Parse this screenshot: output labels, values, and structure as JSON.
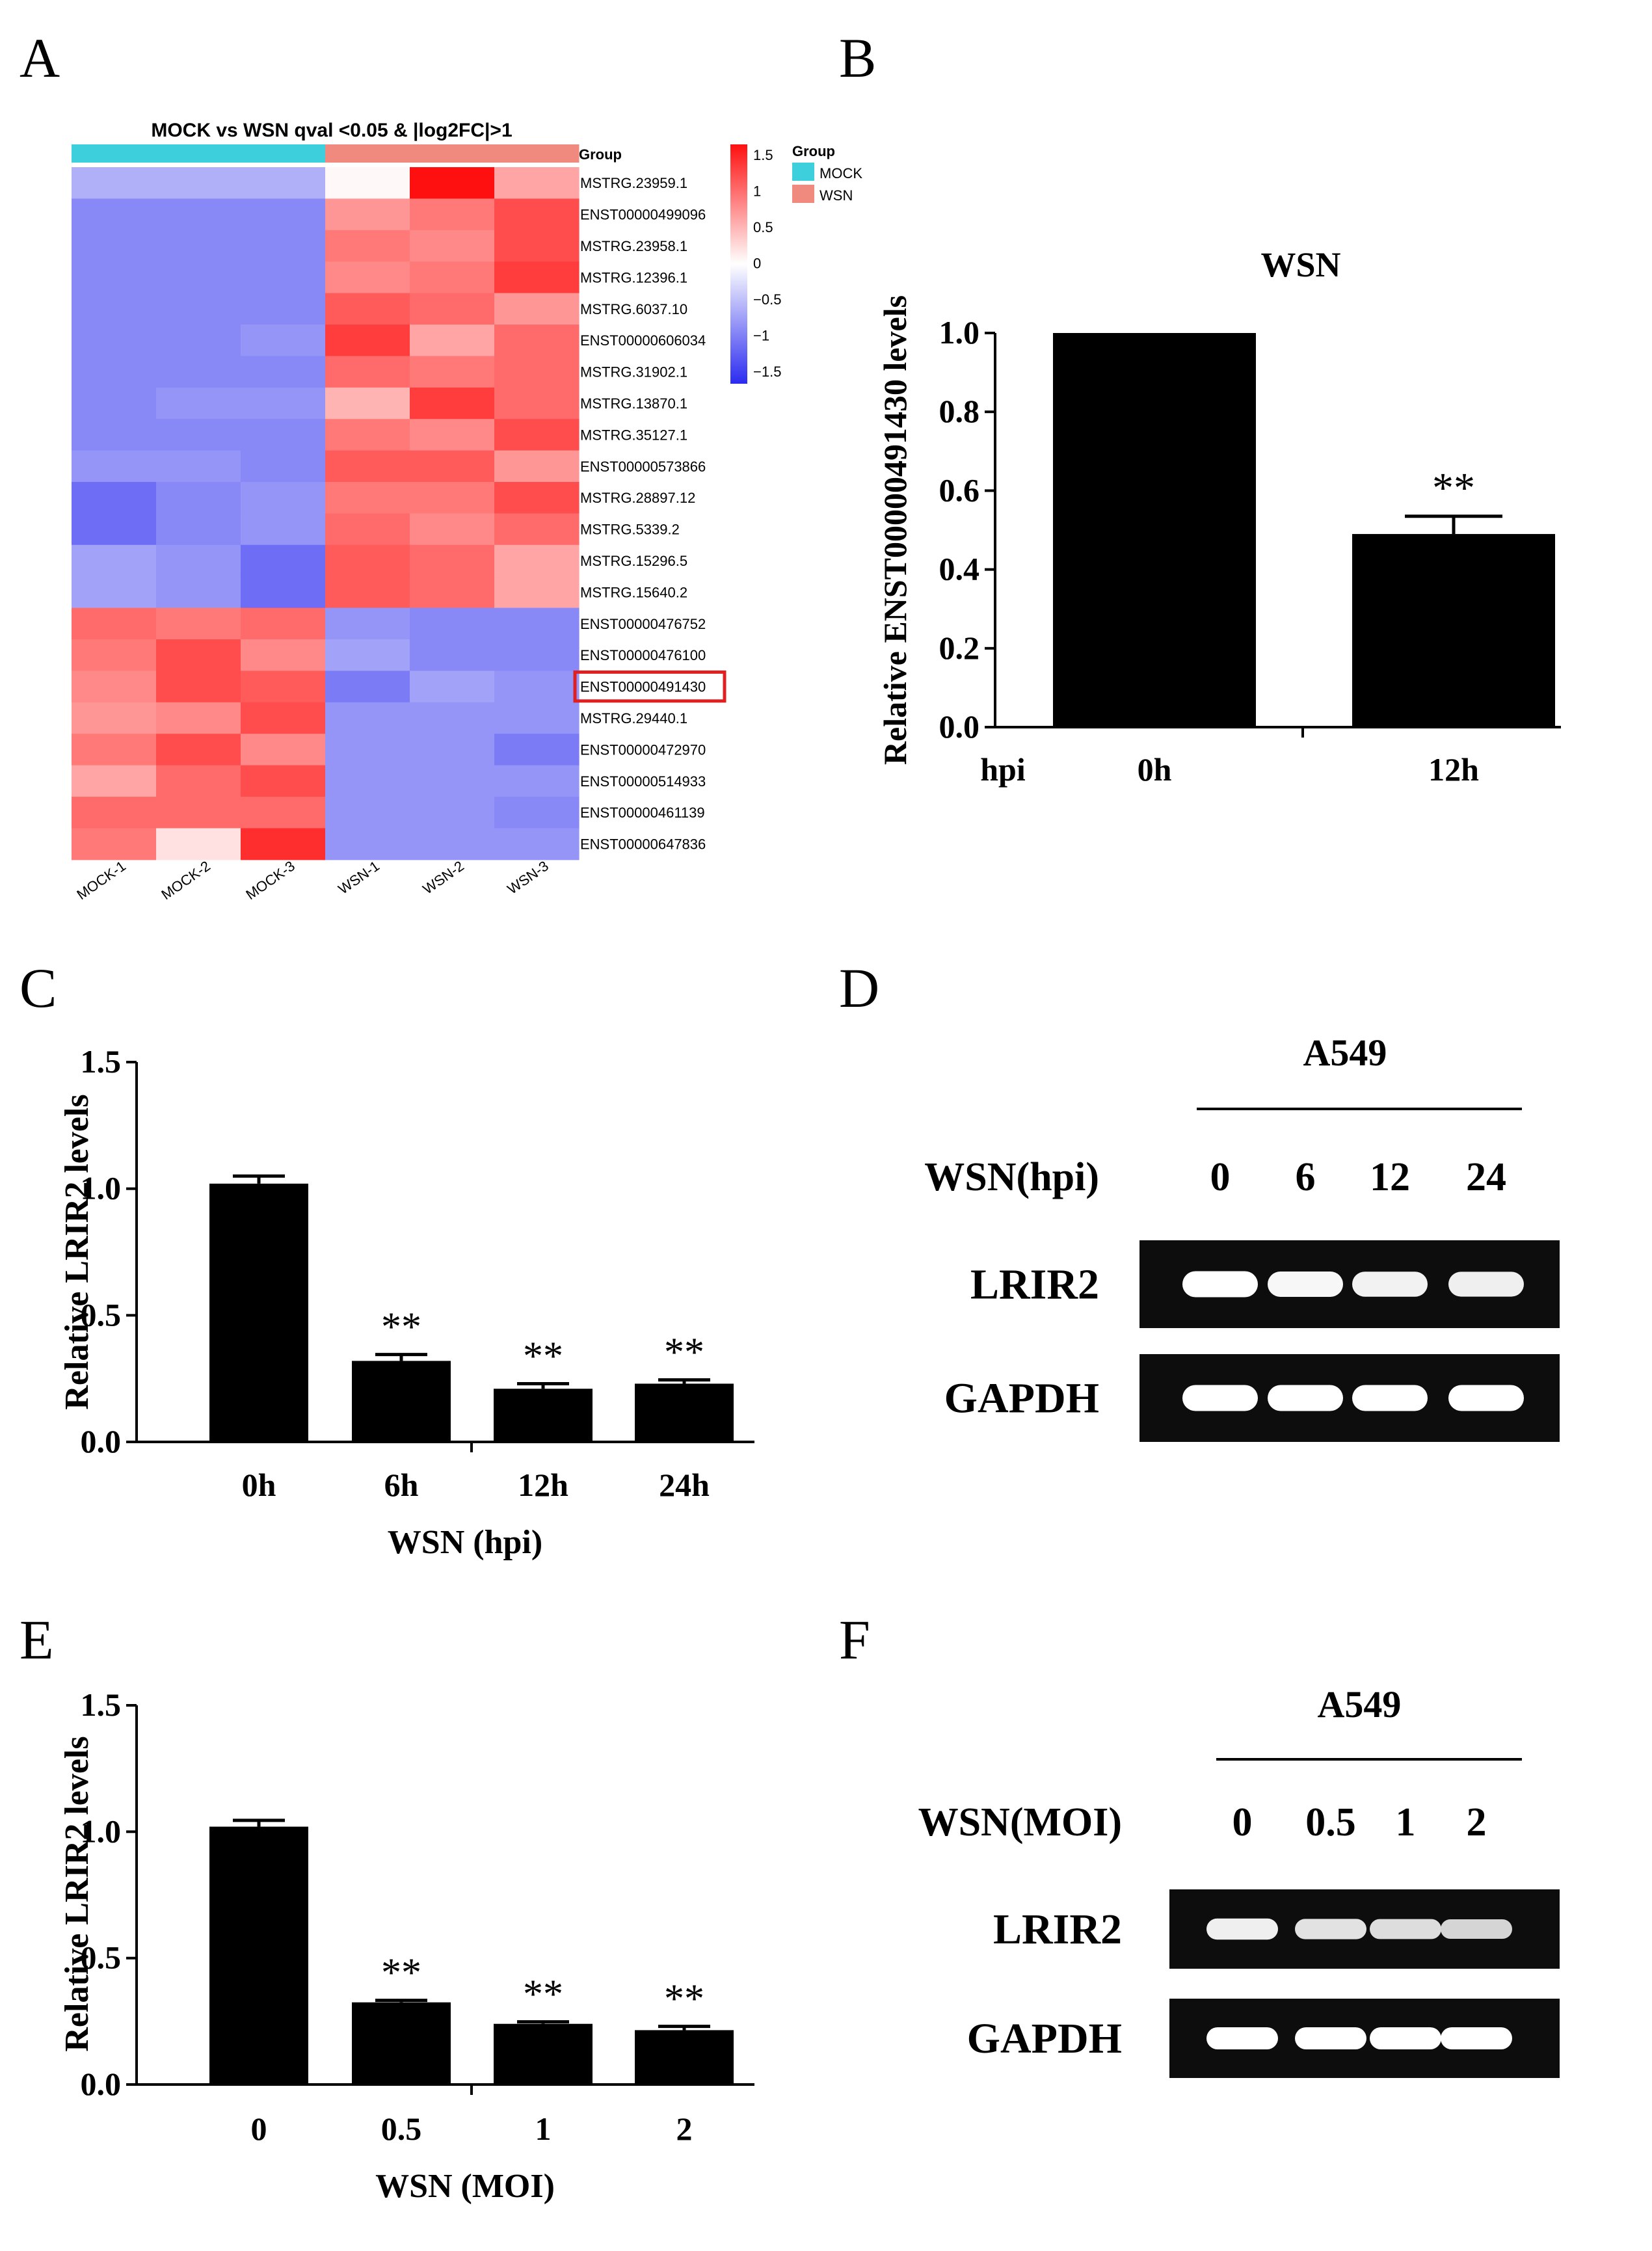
{
  "panels": {
    "A": {
      "label": "A"
    },
    "B": {
      "label": "B"
    },
    "C": {
      "label": "C"
    },
    "D": {
      "label": "D"
    },
    "E": {
      "label": "E"
    },
    "F": {
      "label": "F"
    }
  },
  "colors": {
    "mock": "#3ecfdc",
    "wsn": "#f08a7e",
    "bar": "#000000",
    "heat_low": "#2b2bf0",
    "heat_mid": "#ffffff",
    "heat_high": "#ff1010",
    "gel_bg": "#0d0d0d",
    "highlight_box": "#e02020"
  },
  "chart_data": [
    {
      "type": "heatmap",
      "panel": "A",
      "title": "MOCK vs WSN qval <0.05 & |log2FC|>1",
      "group_row_label": "Group",
      "columns": [
        "MOCK-1",
        "MOCK-2",
        "MOCK-3",
        "WSN-1",
        "WSN-2",
        "WSN-3"
      ],
      "column_groups": [
        "MOCK",
        "MOCK",
        "MOCK",
        "WSN",
        "WSN",
        "WSN"
      ],
      "rows": [
        "MSTRG.23959.1",
        "ENST00000499096",
        "MSTRG.23958.1",
        "MSTRG.12396.1",
        "MSTRG.6037.10",
        "ENST00000606034",
        "MSTRG.31902.1",
        "MSTRG.13870.1",
        "MSTRG.35127.1",
        "ENST00000573866",
        "MSTRG.28897.12",
        "MSTRG.5339.2",
        "MSTRG.15296.5",
        "MSTRG.15640.2",
        "ENST00000476752",
        "ENST00000476100",
        "ENST00000491430",
        "MSTRG.29440.1",
        "ENST00000472970",
        "ENST00000514933",
        "ENST00000461139",
        "ENST00000647836"
      ],
      "highlight_row": "ENST00000491430",
      "values": [
        [
          -0.6,
          -0.6,
          -0.6,
          0.05,
          1.6,
          0.6
        ],
        [
          -0.9,
          -0.9,
          -0.9,
          0.7,
          0.9,
          1.2
        ],
        [
          -0.9,
          -0.9,
          -0.9,
          0.9,
          0.8,
          1.2
        ],
        [
          -0.9,
          -0.9,
          -0.9,
          0.8,
          0.9,
          1.3
        ],
        [
          -0.9,
          -0.9,
          -0.9,
          1.1,
          1.0,
          0.7
        ],
        [
          -0.9,
          -0.9,
          -0.8,
          1.3,
          0.6,
          1.0
        ],
        [
          -0.9,
          -0.9,
          -0.9,
          1.0,
          0.9,
          1.0
        ],
        [
          -0.9,
          -0.8,
          -0.8,
          0.5,
          1.3,
          1.0
        ],
        [
          -0.9,
          -0.9,
          -0.9,
          0.9,
          0.8,
          1.2
        ],
        [
          -0.8,
          -0.8,
          -0.9,
          1.1,
          1.1,
          0.7
        ],
        [
          -1.1,
          -0.9,
          -0.8,
          0.9,
          0.9,
          1.2
        ],
        [
          -1.1,
          -0.9,
          -0.8,
          1.0,
          0.8,
          1.0
        ],
        [
          -0.7,
          -0.8,
          -1.1,
          1.1,
          1.0,
          0.6
        ],
        [
          -0.7,
          -0.8,
          -1.1,
          1.1,
          1.0,
          0.6
        ],
        [
          1.0,
          0.9,
          1.0,
          -0.8,
          -0.9,
          -0.9
        ],
        [
          0.9,
          1.2,
          0.8,
          -0.7,
          -0.9,
          -0.9
        ],
        [
          0.8,
          1.2,
          1.1,
          -1.0,
          -0.7,
          -0.8
        ],
        [
          0.7,
          0.8,
          1.2,
          -0.8,
          -0.8,
          -0.8
        ],
        [
          0.9,
          1.2,
          0.8,
          -0.8,
          -0.8,
          -1.0
        ],
        [
          0.6,
          1.0,
          1.2,
          -0.8,
          -0.8,
          -0.8
        ],
        [
          1.0,
          1.0,
          1.0,
          -0.8,
          -0.8,
          -0.9
        ],
        [
          0.9,
          0.2,
          1.4,
          -0.8,
          -0.8,
          -0.8
        ]
      ],
      "color_scale": {
        "ticks": [
          "1.5",
          "1",
          "0.5",
          "0",
          "−0.5",
          "−1",
          "−1.5"
        ],
        "range": [
          -1.6,
          1.6
        ]
      },
      "legend": {
        "title": "Group",
        "entries": [
          "MOCK",
          "WSN"
        ]
      }
    },
    {
      "type": "bar",
      "panel": "B",
      "title": "WSN",
      "ylabel": "Relative ENST00000491430 levels",
      "xlabel": "hpi",
      "categories": [
        "0h",
        "12h"
      ],
      "values": [
        1.0,
        0.49
      ],
      "errors": [
        0,
        0.045
      ],
      "significance": [
        "",
        "**"
      ],
      "ylim": [
        0,
        1.0
      ],
      "yticks": [
        "0.0",
        "0.2",
        "0.4",
        "0.6",
        "0.8",
        "1.0"
      ],
      "ytick_values": [
        0,
        0.2,
        0.4,
        0.6,
        0.8,
        1.0
      ]
    },
    {
      "type": "bar",
      "panel": "C",
      "ylabel": "Relative LRIR2 levels",
      "xlabel": "WSN (hpi)",
      "categories": [
        "0h",
        "6h",
        "12h",
        "24h"
      ],
      "values": [
        1.02,
        0.32,
        0.21,
        0.23
      ],
      "errors": [
        0.03,
        0.025,
        0.02,
        0.015
      ],
      "significance": [
        "",
        "**",
        "**",
        "**"
      ],
      "ylim": [
        0,
        1.5
      ],
      "yticks": [
        "0.0",
        "0.5",
        "1.0",
        "1.5"
      ],
      "ytick_values": [
        0,
        0.5,
        1.0,
        1.5
      ]
    },
    {
      "type": "bar",
      "panel": "E",
      "ylabel": "Relative LRIR2 levels",
      "xlabel": "WSN (MOI)",
      "categories": [
        "0",
        "0.5",
        "1",
        "2"
      ],
      "values": [
        1.02,
        0.325,
        0.24,
        0.215
      ],
      "errors": [
        0.025,
        0.008,
        0.008,
        0.015
      ],
      "significance": [
        "",
        "**",
        "**",
        "**"
      ],
      "ylim": [
        0,
        1.5
      ],
      "yticks": [
        "0.0",
        "0.5",
        "1.0",
        "1.5"
      ],
      "ytick_values": [
        0,
        0.5,
        1.0,
        1.5
      ]
    }
  ],
  "gels": {
    "D": {
      "cell_line": "A549",
      "condition_label": "WSN(hpi)",
      "lanes": [
        "0",
        "6",
        "12",
        "24"
      ],
      "rows": [
        {
          "label": "LRIR2",
          "intensity": [
            1.0,
            0.92,
            0.88,
            0.85
          ]
        },
        {
          "label": "GAPDH",
          "intensity": [
            1.0,
            1.0,
            1.0,
            1.0
          ]
        }
      ]
    },
    "F": {
      "cell_line": "A549",
      "condition_label": "WSN(MOI)",
      "lanes": [
        "0",
        "0.5",
        "1",
        "2"
      ],
      "rows": [
        {
          "label": "LRIR2",
          "intensity": [
            0.85,
            0.72,
            0.68,
            0.6
          ]
        },
        {
          "label": "GAPDH",
          "intensity": [
            1.0,
            1.0,
            1.0,
            1.0
          ]
        }
      ]
    }
  }
}
